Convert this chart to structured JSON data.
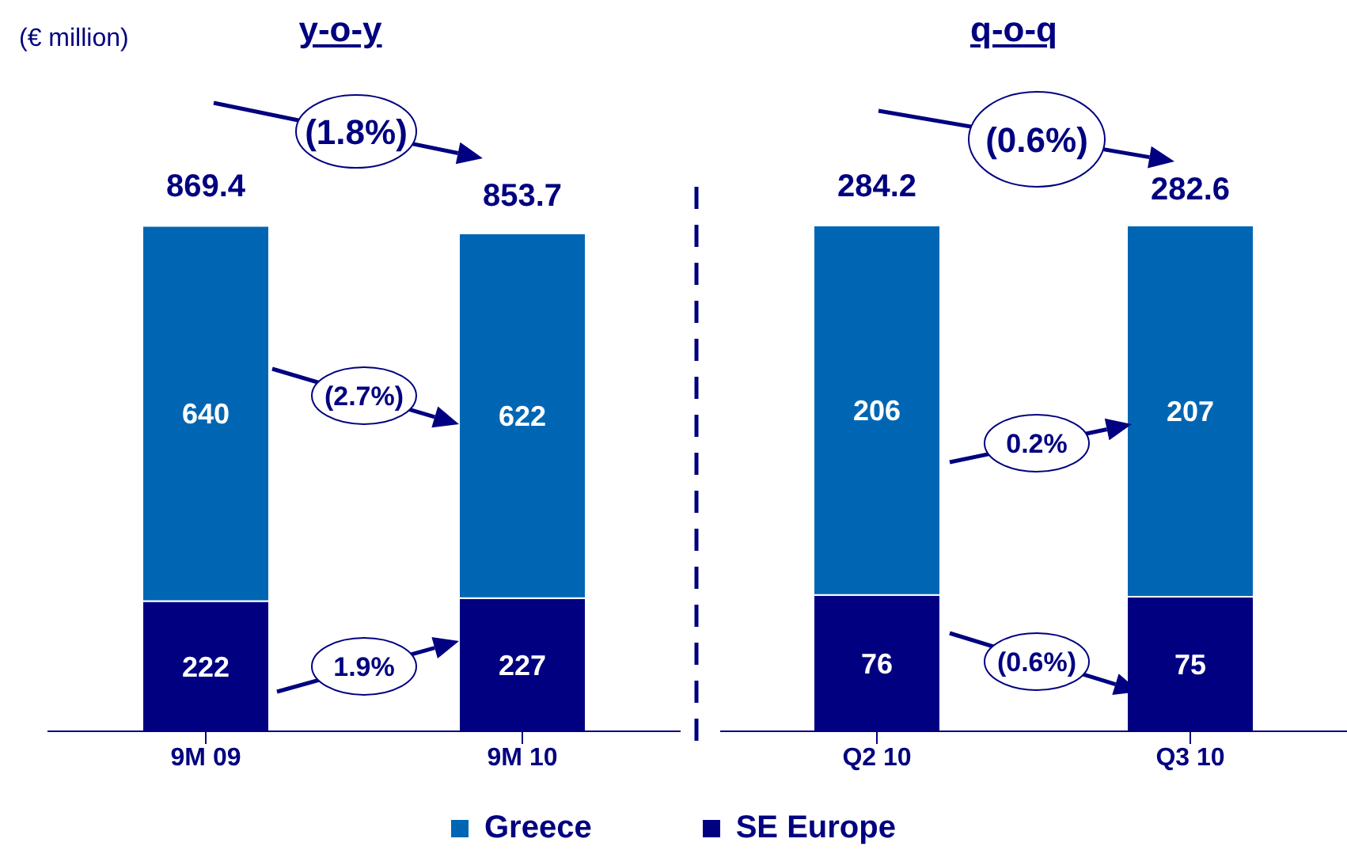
{
  "chart_data": [
    {
      "type": "bar",
      "title": "y-o-y",
      "categories": [
        "9M 09",
        "9M 10"
      ],
      "stacked": true,
      "series": [
        {
          "name": "SE Europe",
          "color": "#000080",
          "values": [
            222,
            227
          ]
        },
        {
          "name": "Greece",
          "color": "#0066b3",
          "values": [
            640,
            622
          ]
        }
      ],
      "data_labels": true,
      "legend": "bottom",
      "tick_labels": "x",
      "grid": false,
      "annotations": [
        "(€ million)",
        {
          "text": "869.4",
          "x": "9M 09",
          "y": 869.4
        },
        {
          "text": "853.7",
          "x": "9M 10",
          "y": 853.7
        },
        "(1.8%)",
        "(2.7%)",
        "1.9%"
      ]
    },
    {
      "type": "bar",
      "title": "q-o-q",
      "categories": [
        "Q2 10",
        "Q3 10"
      ],
      "stacked": true,
      "series": [
        {
          "color": "#000080",
          "values": [
            76,
            75
          ]
        },
        {
          "color": "#0066b3",
          "values": [
            206,
            207
          ]
        }
      ],
      "data_labels": true,
      "tick_labels": "x",
      "grid": false,
      "annotations": [
        {
          "text": "284.2",
          "x": "Q2 10",
          "y": 284.2
        },
        {
          "text": "282.6",
          "x": "Q3 10",
          "y": 282.6
        },
        "(0.6%)",
        "0.2%",
        "(0.6%)"
      ]
    }
  ]
}
